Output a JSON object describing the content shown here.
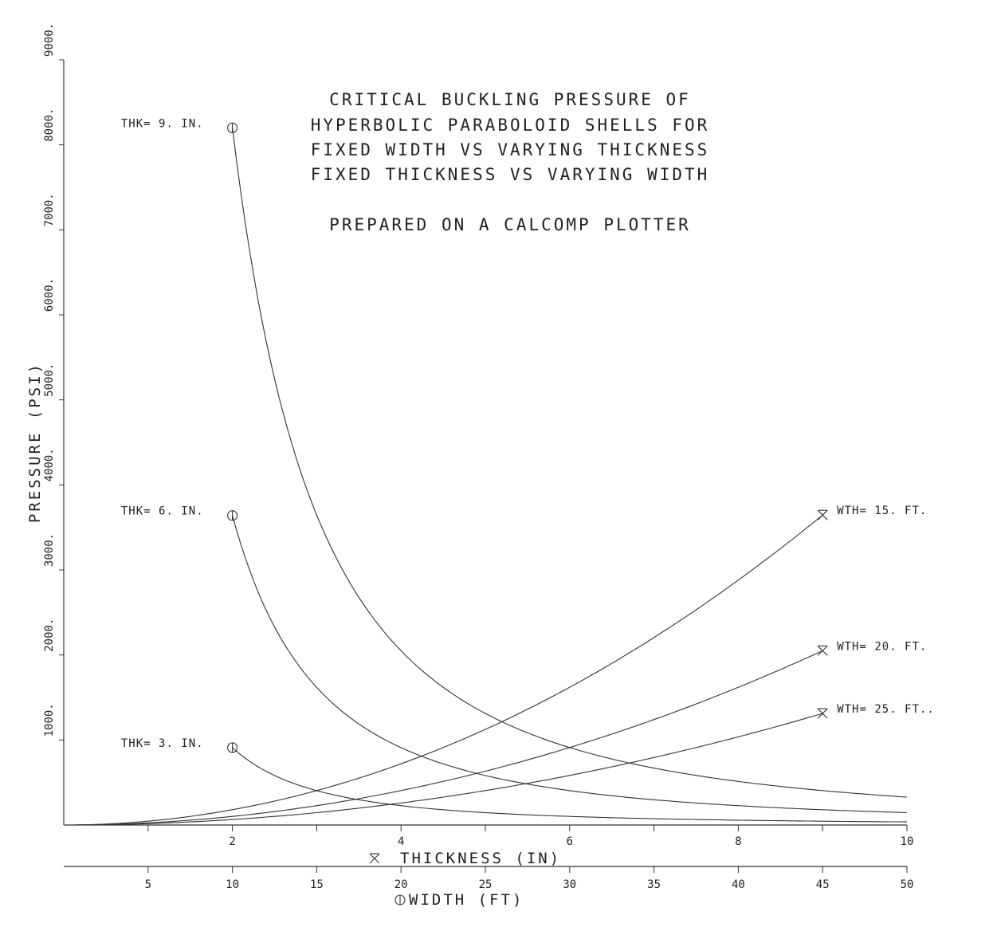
{
  "chart_data": {
    "type": "line",
    "title_lines": [
      "CRITICAL BUCKLING PRESSURE OF",
      "HYPERBOLIC PARABOLOID SHELLS FOR",
      "FIXED WIDTH VS VARYING THICKNESS",
      "FIXED THICKNESS VS VARYING WIDTH"
    ],
    "subtitle": "PREPARED ON A CALCOMP PLOTTER",
    "ylabel": "PRESSURE (PSI)",
    "ylim": [
      0,
      9000
    ],
    "yticks": [
      1000,
      2000,
      3000,
      4000,
      5000,
      6000,
      7000,
      8000,
      9000
    ],
    "ytick_labels": [
      "1000.",
      "2000.",
      "3000.",
      "4000.",
      "5000.",
      "6000.",
      "7000.",
      "8000.",
      "9000."
    ],
    "x_axes": [
      {
        "id": "thickness",
        "label": "THICKNESS (IN)",
        "marker": "x",
        "range": [
          0,
          10
        ],
        "ticks": [
          1,
          2,
          3,
          4,
          5,
          6,
          7,
          8,
          9,
          10
        ],
        "tick_labels": [
          "",
          "2",
          "",
          "4",
          "",
          "6",
          "",
          "8",
          "",
          "10"
        ]
      },
      {
        "id": "width",
        "label": "WIDTH (FT)",
        "marker": "o",
        "range": [
          0,
          50
        ],
        "ticks": [
          5,
          10,
          15,
          20,
          25,
          30,
          35,
          40,
          45,
          50
        ],
        "tick_labels": [
          "5",
          "10",
          "15",
          "20",
          "25",
          "30",
          "35",
          "40",
          "45",
          "50"
        ]
      }
    ],
    "series": [
      {
        "name": "THK= 9. IN.",
        "axis": "width",
        "marker": "o",
        "x": [
          10,
          12,
          15,
          20,
          25,
          30,
          35,
          40,
          45,
          50
        ],
        "y": [
          8200,
          5694,
          3644,
          2050,
          1312,
          911,
          669,
          512,
          405,
          328
        ]
      },
      {
        "name": "THK= 6. IN.",
        "axis": "width",
        "marker": "o",
        "x": [
          10,
          12,
          15,
          20,
          25,
          30,
          35,
          40,
          45,
          50
        ],
        "y": [
          3640,
          2528,
          1618,
          910,
          582,
          404,
          297,
          228,
          180,
          146
        ]
      },
      {
        "name": "THK= 3. IN.",
        "axis": "width",
        "marker": "o",
        "x": [
          10,
          12,
          15,
          20,
          25,
          30,
          35,
          40,
          45,
          50
        ],
        "y": [
          910,
          632,
          404,
          228,
          146,
          101,
          74,
          57,
          45,
          36
        ]
      },
      {
        "name": "WTH= 15. FT.",
        "axis": "thickness",
        "marker": "x",
        "x": [
          0,
          1,
          2,
          3,
          4,
          5,
          6,
          7,
          8,
          9
        ],
        "y": [
          0,
          45,
          180,
          405,
          720,
          1125,
          1620,
          2205,
          2880,
          3645
        ]
      },
      {
        "name": "WTH= 20. FT.",
        "axis": "thickness",
        "marker": "x",
        "x": [
          0,
          1,
          2,
          3,
          4,
          5,
          6,
          7,
          8,
          9
        ],
        "y": [
          0,
          25,
          101,
          228,
          405,
          633,
          911,
          1240,
          1620,
          2050
        ]
      },
      {
        "name": "WTH= 25. FT..",
        "axis": "thickness",
        "marker": "x",
        "x": [
          0,
          1,
          2,
          3,
          4,
          5,
          6,
          7,
          8,
          9
        ],
        "y": [
          0,
          16,
          65,
          146,
          259,
          405,
          583,
          794,
          1037,
          1312
        ]
      }
    ],
    "grid": false,
    "legend": "none"
  }
}
